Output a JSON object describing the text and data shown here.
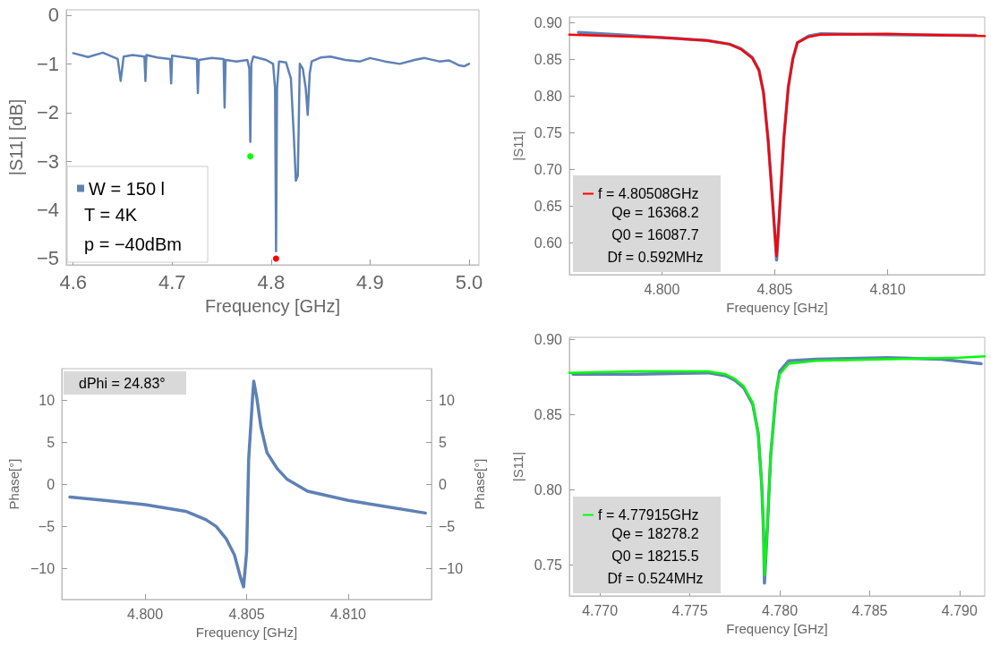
{
  "chart_data": [
    {
      "type": "line",
      "xlabel": "Frequency [GHz]",
      "ylabel": "|S11| [dB]",
      "xlim": [
        4.593,
        5.01
      ],
      "ylim": [
        -5.13,
        0.11
      ],
      "xticks": [
        4.6,
        4.7,
        4.8,
        4.9,
        {
          "value": 5,
          "label": "5.0"
        }
      ],
      "yticks": [
        0,
        {
          "value": -1,
          "label": "−1"
        },
        {
          "value": -2,
          "label": "−2"
        },
        {
          "value": -3,
          "label": "−3"
        },
        {
          "value": -4,
          "label": "−4"
        },
        {
          "value": -5,
          "label": "−5"
        }
      ],
      "legend": "bottom left",
      "annotations": [
        "T = 4K",
        "p = −40dBm"
      ],
      "series": [
        {
          "name": "W = 150 l",
          "type": "line",
          "color": "#5e81b5",
          "x": [
            4.6,
            4.615,
            4.63,
            4.645,
            4.648,
            4.651,
            4.66,
            4.672,
            4.673,
            4.674,
            4.685,
            4.698,
            4.699,
            4.7,
            4.71,
            4.725,
            4.726,
            4.727,
            4.74,
            4.752,
            4.753,
            4.754,
            4.765,
            4.776,
            4.778,
            4.779,
            4.78,
            4.782,
            4.795,
            4.802,
            4.804,
            4.805,
            4.806,
            4.808,
            4.815,
            4.82,
            4.823,
            4.825,
            4.827,
            4.829,
            4.832,
            4.835,
            4.837,
            4.839,
            4.841,
            4.85,
            4.86,
            4.875,
            4.89,
            4.9,
            4.915,
            4.93,
            4.945,
            4.955,
            4.97,
            4.98,
            4.99,
            4.995,
            5.0
          ],
          "values": [
            -0.78,
            -0.86,
            -0.77,
            -0.9,
            -1.35,
            -0.85,
            -0.82,
            -0.85,
            -1.35,
            -0.82,
            -0.87,
            -0.9,
            -1.4,
            -0.83,
            -0.86,
            -0.9,
            -1.6,
            -0.92,
            -0.88,
            -0.9,
            -1.9,
            -0.92,
            -0.95,
            -0.92,
            -1.1,
            -2.6,
            -1.0,
            -0.85,
            -0.92,
            -1.0,
            -1.5,
            -4.85,
            -1.5,
            -0.95,
            -0.97,
            -1.3,
            -2.5,
            -3.4,
            -3.3,
            -1.0,
            -1.1,
            -1.5,
            -2.05,
            -1.2,
            -0.95,
            -0.87,
            -0.85,
            -0.92,
            -0.95,
            -0.88,
            -0.95,
            -1.0,
            -0.92,
            -0.88,
            -0.95,
            -0.93,
            -1.03,
            -1.05,
            -1.0
          ]
        },
        {
          "type": "scatter",
          "marker": "circle",
          "color": "#00ff00",
          "x": [
            4.779
          ],
          "values": [
            -2.9
          ]
        },
        {
          "type": "scatter",
          "marker": "circle",
          "color": "#ff0000",
          "x": [
            4.805
          ],
          "values": [
            -5.0
          ]
        }
      ]
    },
    {
      "type": "line",
      "xlabel": "Frequency [GHz]",
      "ylabel": "|S11|",
      "xlim": [
        4.7959,
        4.8143
      ],
      "ylim": [
        0.557,
        0.908
      ],
      "xticks": [
        {
          "value": 4.8,
          "label": "4.800"
        },
        4.805,
        {
          "value": 4.81,
          "label": "4.810"
        }
      ],
      "yticks": [
        {
          "value": 0.6,
          "label": "0.60"
        },
        0.65,
        {
          "value": 0.7,
          "label": "0.70"
        },
        0.75,
        {
          "value": 0.8,
          "label": "0.80"
        },
        0.85,
        {
          "value": 0.9,
          "label": "0.90"
        }
      ],
      "legend": "bottom left",
      "annotations": [
        "Qe = 16368.2",
        "Q0 = 16087.7",
        "Df = 0.592MHz"
      ],
      "series": [
        {
          "type": "line",
          "color": "#5e81b5",
          "x": [
            4.7963,
            4.798,
            4.8,
            4.802,
            4.803,
            4.8035,
            4.804,
            4.8043,
            4.8045,
            4.8047,
            4.8049,
            4.80508,
            4.8052,
            4.8054,
            4.8056,
            4.8058,
            4.806,
            4.8065,
            4.807,
            4.81,
            4.8139
          ],
          "values": [
            0.887,
            0.884,
            0.88,
            0.876,
            0.871,
            0.865,
            0.853,
            0.836,
            0.805,
            0.742,
            0.658,
            0.577,
            0.637,
            0.742,
            0.813,
            0.851,
            0.873,
            0.882,
            0.885,
            0.884,
            0.883
          ]
        },
        {
          "name": "f = 4.80508GHz",
          "type": "line",
          "color": "#ff0000",
          "x": [
            4.7959,
            4.8,
            4.802,
            4.803,
            4.8035,
            4.804,
            4.8043,
            4.8045,
            4.8047,
            4.8049,
            4.80508,
            4.8052,
            4.8054,
            4.8056,
            4.8058,
            4.806,
            4.8065,
            4.807,
            4.81,
            4.8143
          ],
          "values": [
            0.884,
            0.88,
            0.876,
            0.871,
            0.864,
            0.852,
            0.835,
            0.805,
            0.742,
            0.658,
            0.582,
            0.637,
            0.742,
            0.813,
            0.851,
            0.873,
            0.881,
            0.884,
            0.885,
            0.882
          ]
        }
      ]
    },
    {
      "type": "line",
      "xlabel": "Frequency [GHz]",
      "ylabel": "Phase[°]",
      "y2label": "Phase[°]",
      "xlim": [
        4.7959,
        4.8141
      ],
      "ylim": [
        -13.7,
        13.8
      ],
      "y2lim": [
        -13.7,
        13.8
      ],
      "xticks": [
        {
          "value": 4.8,
          "label": "4.800"
        },
        4.805,
        {
          "value": 4.81,
          "label": "4.810"
        }
      ],
      "yticks": [
        {
          "value": -10,
          "label": "−10"
        },
        {
          "value": -5,
          "label": "−5"
        },
        0,
        5,
        10
      ],
      "y2ticks": [
        {
          "value": -10,
          "label": "−10"
        },
        {
          "value": -5,
          "label": "−5"
        },
        0,
        5,
        10
      ],
      "annotations": [
        "dPhi = 24.83°"
      ],
      "series": [
        {
          "type": "line",
          "color": "#5e81b5",
          "x": [
            4.7963,
            4.798,
            4.8,
            4.802,
            4.803,
            4.8035,
            4.804,
            4.8044,
            4.8047,
            4.80485,
            4.805,
            4.8051,
            4.8053,
            4.80535,
            4.8055,
            4.8057,
            4.806,
            4.8065,
            4.807,
            4.808,
            4.81,
            4.812,
            4.8138
          ],
          "values": [
            -1.5,
            -1.9,
            -2.4,
            -3.2,
            -4.2,
            -5.0,
            -6.5,
            -8.4,
            -11.1,
            -12.2,
            -8.0,
            3.0,
            10.7,
            12.3,
            10.3,
            6.9,
            3.8,
            1.9,
            0.6,
            -0.8,
            -1.9,
            -2.7,
            -3.4
          ]
        }
      ]
    },
    {
      "type": "line",
      "xlabel": "Frequency [GHz]",
      "ylabel": "|S11|",
      "xlim": [
        4.7683,
        4.7914
      ],
      "ylim": [
        0.7295,
        0.9016
      ],
      "xticks": [
        {
          "value": 4.77,
          "label": "4.770"
        },
        4.775,
        {
          "value": 4.78,
          "label": "4.780"
        },
        4.785,
        {
          "value": 4.79,
          "label": "4.790"
        }
      ],
      "yticks": [
        0.75,
        {
          "value": 0.8,
          "label": "0.80"
        },
        0.85,
        {
          "value": 0.9,
          "label": "0.90"
        }
      ],
      "legend": "bottom left",
      "annotations": [
        "Qe = 18278.2",
        "Q0 = 18215.5",
        "Df = 0.524MHz"
      ],
      "series": [
        {
          "type": "line",
          "color": "#5e81b5",
          "x": [
            4.7685,
            4.772,
            4.776,
            4.777,
            4.7775,
            4.778,
            4.7785,
            4.7788,
            4.779,
            4.7791,
            4.77915,
            4.7793,
            4.7795,
            4.7798,
            4.78,
            4.7805,
            4.782,
            4.786,
            4.789,
            4.7912
          ],
          "values": [
            0.877,
            0.877,
            0.878,
            0.876,
            0.873,
            0.868,
            0.857,
            0.838,
            0.803,
            0.772,
            0.738,
            0.772,
            0.8236,
            0.865,
            0.879,
            0.886,
            0.887,
            0.888,
            0.887,
            0.884
          ]
        },
        {
          "name": "f = 4.77915GHz",
          "type": "line",
          "color": "#00ff00",
          "x": [
            4.7683,
            4.772,
            4.776,
            4.777,
            4.7775,
            4.778,
            4.7785,
            4.7788,
            4.779,
            4.7791,
            4.77915,
            4.7793,
            4.7795,
            4.7798,
            4.78,
            4.7805,
            4.782,
            4.786,
            4.79,
            4.7914
          ],
          "values": [
            0.878,
            0.879,
            0.879,
            0.877,
            0.874,
            0.869,
            0.858,
            0.838,
            0.803,
            0.772,
            0.743,
            0.772,
            0.824,
            0.865,
            0.877,
            0.884,
            0.886,
            0.887,
            0.888,
            0.889
          ]
        }
      ]
    }
  ]
}
